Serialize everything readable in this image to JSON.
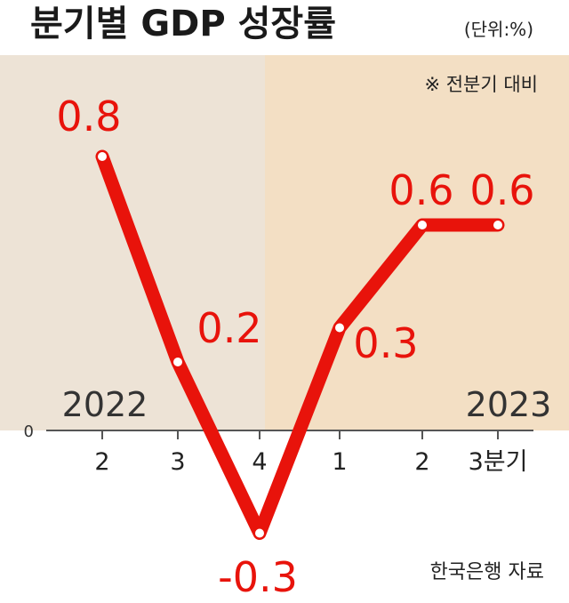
{
  "header": {
    "title": "분기별 GDP 성장률",
    "unit": "(단위:%)",
    "note": "※ 전분기 대비"
  },
  "chart_data": {
    "type": "line",
    "title": "분기별 GDP 성장률",
    "unit": "(단위:%)",
    "categories": [
      "2",
      "3",
      "4",
      "1",
      "2",
      "3분기"
    ],
    "values": [
      0.8,
      0.2,
      -0.3,
      0.3,
      0.6,
      0.6
    ],
    "data_labels": [
      "0.8",
      "0.2",
      "-0.3",
      "0.3",
      "0.6",
      "0.6"
    ],
    "years": [
      "2022",
      "2023"
    ],
    "year_split_after_index": 2,
    "zero_label": "0",
    "ylim": [
      -0.5,
      1.0
    ],
    "grid": false,
    "line_color": "#e8130b",
    "band_colors": [
      "#ede3d6",
      "#f3dfc4"
    ]
  },
  "footer": {
    "source": "한국은행 자료"
  }
}
